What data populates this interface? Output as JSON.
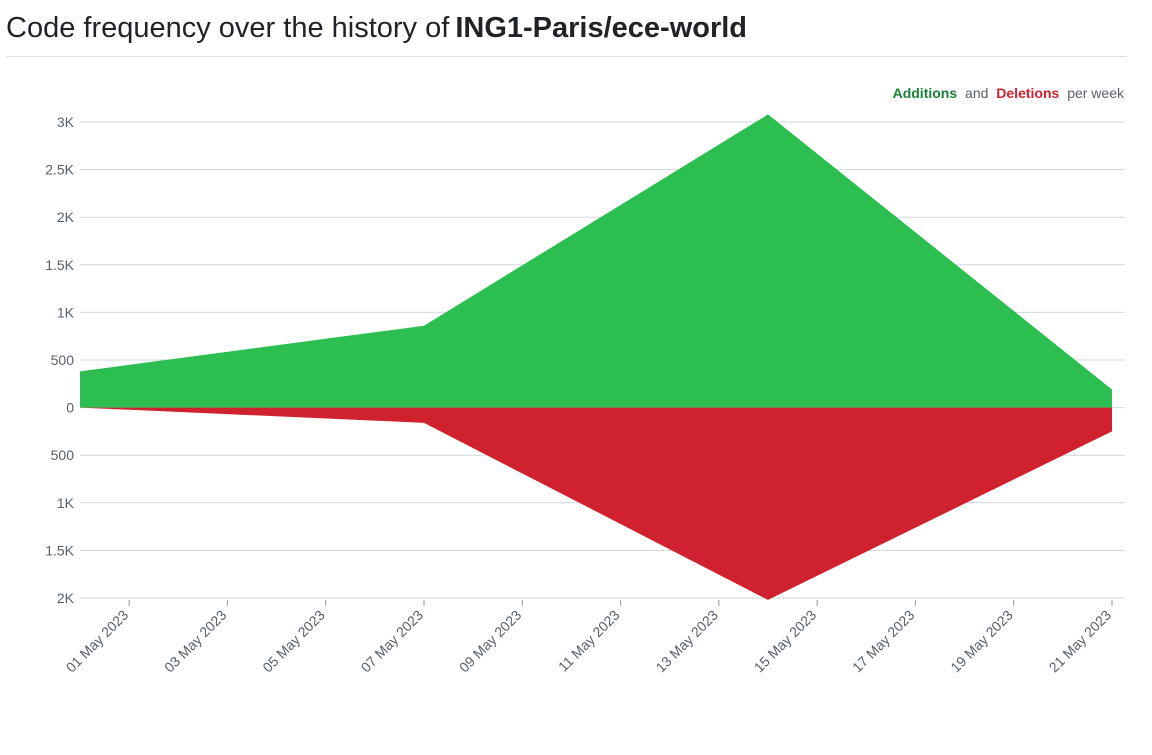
{
  "header": {
    "prefix": "Code frequency over the history of",
    "repo": "ING1-Paris/ece-world"
  },
  "legend": {
    "additions_label": "Additions",
    "connector": "and",
    "deletions_label": "Deletions",
    "suffix": "per week"
  },
  "colors": {
    "additions": "#2dbe52",
    "deletions": "#cf222e",
    "additions_text": "#1a7f37",
    "deletions_text": "#cf222e",
    "legend_muted": "#57606a",
    "grid": "#d0d7de"
  },
  "chart_data": {
    "type": "area",
    "title": "",
    "xlabel": "",
    "ylabel": "",
    "grid": true,
    "legend_position": "top-right",
    "x_ticks": [
      "01 May 2023",
      "03 May 2023",
      "05 May 2023",
      "07 May 2023",
      "09 May 2023",
      "11 May 2023",
      "13 May 2023",
      "15 May 2023",
      "17 May 2023",
      "19 May 2023",
      "21 May 2023"
    ],
    "x_range": [
      "2023-04-30",
      "2023-05-21"
    ],
    "y_range": [
      -2000,
      3000
    ],
    "y_ticks": [
      {
        "value": 3000,
        "label": "3K"
      },
      {
        "value": 2500,
        "label": "2.5K"
      },
      {
        "value": 2000,
        "label": "2K"
      },
      {
        "value": 1500,
        "label": "1.5K"
      },
      {
        "value": 1000,
        "label": "1K"
      },
      {
        "value": 500,
        "label": "500"
      },
      {
        "value": 0,
        "label": "0"
      },
      {
        "value": -500,
        "label": "500"
      },
      {
        "value": -1000,
        "label": "1K"
      },
      {
        "value": -1500,
        "label": "1.5K"
      },
      {
        "value": -2000,
        "label": "2K"
      }
    ],
    "x": [
      "2023-04-30",
      "2023-05-07",
      "2023-05-14",
      "2023-05-21"
    ],
    "series": [
      {
        "name": "Additions",
        "values": [
          380,
          860,
          3080,
          190
        ]
      },
      {
        "name": "Deletions",
        "values": [
          0,
          -160,
          -2020,
          -250
        ]
      }
    ]
  }
}
